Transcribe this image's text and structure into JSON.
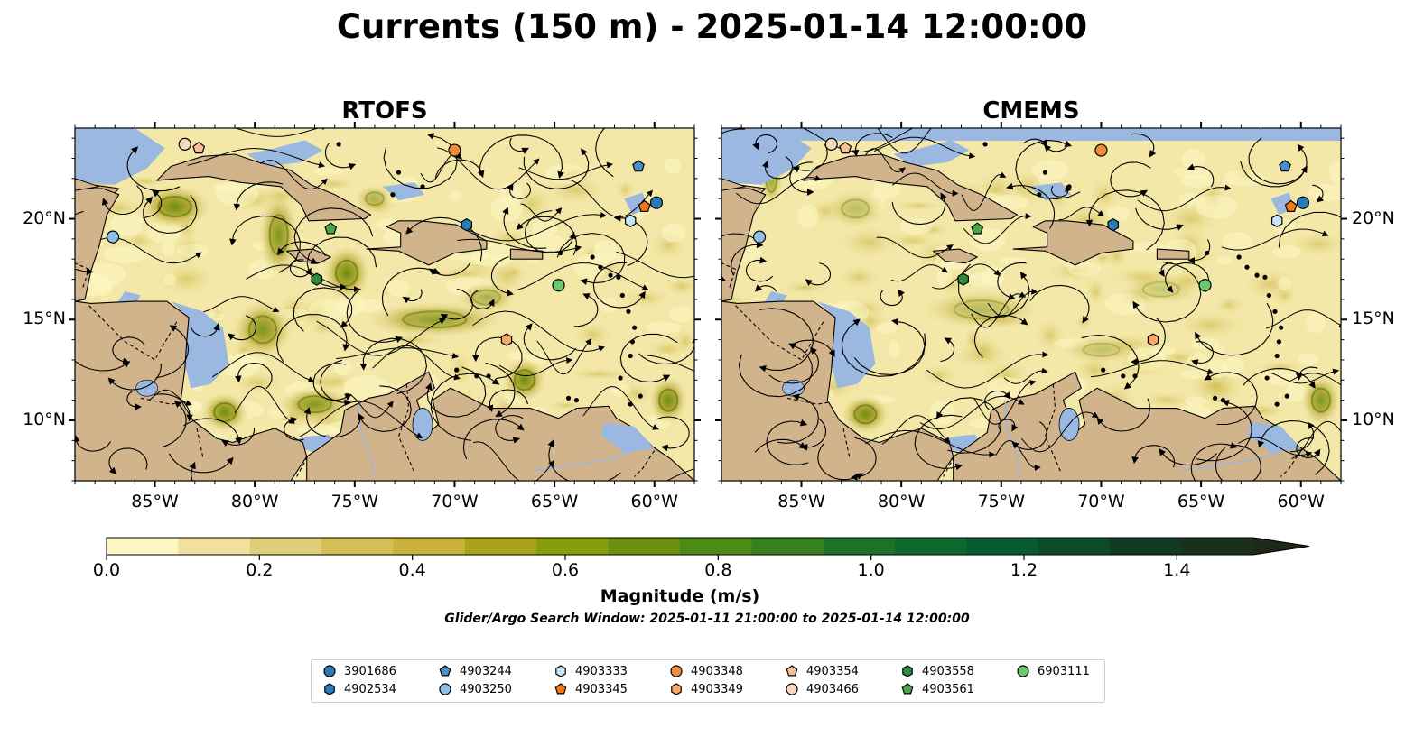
{
  "title": "Currents (150 m) - 2025-01-14 12:00:00",
  "panels": [
    {
      "title": "RTOFS"
    },
    {
      "title": "CMEMS"
    }
  ],
  "lon_ticks": [
    "85°W",
    "80°W",
    "75°W",
    "70°W",
    "65°W",
    "60°W"
  ],
  "lat_ticks": [
    "20°N",
    "15°N",
    "10°N"
  ],
  "lon_range": [
    -89,
    -58
  ],
  "lat_range": [
    7,
    24.5
  ],
  "colorbar": {
    "label": "Magnitude (m/s)",
    "ticks": [
      "0.0",
      "0.2",
      "0.4",
      "0.6",
      "0.8",
      "1.0",
      "1.2",
      "1.4"
    ],
    "range": [
      0,
      1.5
    ],
    "extend": "max",
    "colors": [
      "#fdf7c4",
      "#f0e29e",
      "#e0cd7a",
      "#d4be55",
      "#c8b23c",
      "#a8a31a",
      "#879d0a",
      "#6d8f10",
      "#4e8a1a",
      "#37801e",
      "#1d7228",
      "#0d6830",
      "#075a2e",
      "#0c4a2a",
      "#123a22",
      "#18301c",
      "#1e281a"
    ]
  },
  "search_window": "Glider/Argo Search Window: 2025-01-11 21:00:00 to 2025-01-14 12:00:00",
  "colors": {
    "land": "#d2b48c",
    "ocean": "#9ab8e0"
  },
  "floats": [
    {
      "id": "3901686",
      "marker": "circle",
      "color": "#2a7ab8",
      "lon": -59.9,
      "lat": 20.8
    },
    {
      "id": "4902534",
      "marker": "hexagon",
      "color": "#2a7ab8",
      "lon": -69.4,
      "lat": 19.7
    },
    {
      "id": "4903244",
      "marker": "pentagon",
      "color": "#4a90c8",
      "lon": -60.8,
      "lat": 22.6
    },
    {
      "id": "4903250",
      "marker": "circle",
      "color": "#8ec0e8",
      "lon": -87.1,
      "lat": 19.1
    },
    {
      "id": "4903333",
      "marker": "hexagon",
      "color": "#c8e4f8",
      "lon": -61.2,
      "lat": 19.9
    },
    {
      "id": "4903345",
      "marker": "pentagon",
      "color": "#f07818",
      "lon": -60.5,
      "lat": 20.6
    },
    {
      "id": "4903348",
      "marker": "circle",
      "color": "#f08c3c",
      "lon": -70.0,
      "lat": 23.4
    },
    {
      "id": "4903349",
      "marker": "hexagon",
      "color": "#f8a868",
      "lon": -67.4,
      "lat": 14.0
    },
    {
      "id": "4903354",
      "marker": "pentagon",
      "color": "#f8c098",
      "lon": -82.8,
      "lat": 23.5
    },
    {
      "id": "4903466",
      "marker": "circle",
      "color": "#fcd8c0",
      "lon": -83.5,
      "lat": 23.7
    },
    {
      "id": "4903558",
      "marker": "hexagon",
      "color": "#2e8a3a",
      "lon": -76.9,
      "lat": 17.0
    },
    {
      "id": "4903561",
      "marker": "pentagon",
      "color": "#48a848",
      "lon": -76.2,
      "lat": 19.5
    },
    {
      "id": "6903111",
      "marker": "circle",
      "color": "#6cc870",
      "lon": -64.8,
      "lat": 16.7
    }
  ]
}
